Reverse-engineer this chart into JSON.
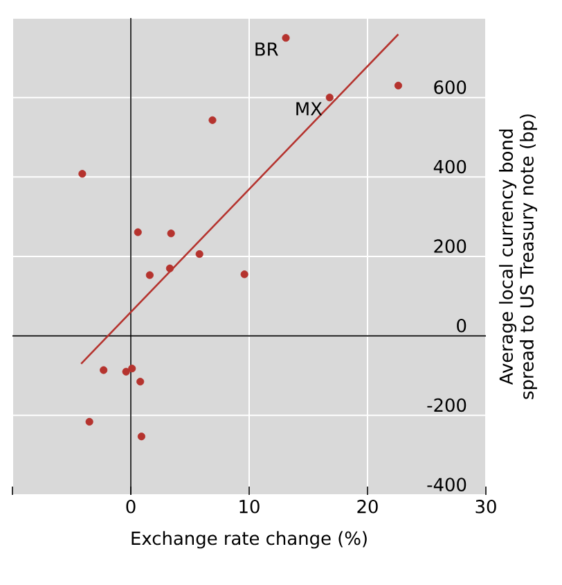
{
  "chart_data": {
    "type": "scatter",
    "xlabel": "Exchange rate change (%)",
    "ylabel": "Average local currency bond spread to US Treasury note (bp)",
    "xlim": [
      -10,
      30
    ],
    "xticks": [
      {
        "value": -10,
        "label": null
      },
      0,
      10,
      20,
      30
    ],
    "ylim": [
      -400,
      800
    ],
    "yticks": [
      -400,
      -200,
      0,
      200,
      400,
      600,
      {
        "value": 800,
        "label": null
      }
    ],
    "grid": true,
    "marker": "circle",
    "series": [
      {
        "type": "scatter",
        "color": "#b5332e",
        "x": [
          13.1,
          16.8,
          22.6,
          6.9,
          -4.1,
          0.6,
          3.4,
          5.8,
          1.6,
          3.3,
          9.6,
          -2.3,
          -0.4,
          0.1,
          0.8,
          -3.5,
          0.9
        ],
        "values": [
          750,
          600,
          630,
          543,
          408,
          261,
          258,
          206,
          153,
          170,
          155,
          -86,
          -90,
          -82,
          -115,
          -216,
          -253
        ]
      },
      {
        "type": "line",
        "color": "#b5332e",
        "marker": "none",
        "line_style": "solid",
        "x": [
          -4.2,
          22.6
        ],
        "values": [
          -70,
          759
        ]
      }
    ],
    "annotations": [
      {
        "text": "BR",
        "x": 13.1,
        "y": 750
      },
      {
        "text": "MX",
        "x": 16.8,
        "y": 600
      }
    ]
  }
}
